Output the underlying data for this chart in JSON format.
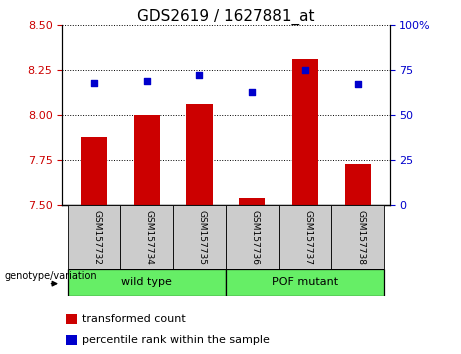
{
  "title": "GDS2619 / 1627881_at",
  "samples": [
    "GSM157732",
    "GSM157734",
    "GSM157735",
    "GSM157736",
    "GSM157737",
    "GSM157738"
  ],
  "transformed_count": [
    7.88,
    8.0,
    8.06,
    7.54,
    8.31,
    7.73
  ],
  "percentile_rank": [
    68,
    69,
    72,
    63,
    75,
    67
  ],
  "ylim_left": [
    7.5,
    8.5
  ],
  "ylim_right": [
    0,
    100
  ],
  "yticks_left": [
    7.5,
    7.75,
    8.0,
    8.25,
    8.5
  ],
  "yticks_right": [
    0,
    25,
    50,
    75,
    100
  ],
  "bar_color": "#cc0000",
  "square_color": "#0000cc",
  "bar_width": 0.5,
  "title_fontsize": 11,
  "tick_fontsize": 8,
  "legend_fontsize": 8,
  "left_tick_color": "#cc0000",
  "right_tick_color": "#0000cc",
  "geno_label": "genotype/variation",
  "group_names": [
    "wild type",
    "POF mutant"
  ],
  "group_color": "#66ee66",
  "sample_bg_color": "#cccccc",
  "legend_red_label": "transformed count",
  "legend_blue_label": "percentile rank within the sample"
}
